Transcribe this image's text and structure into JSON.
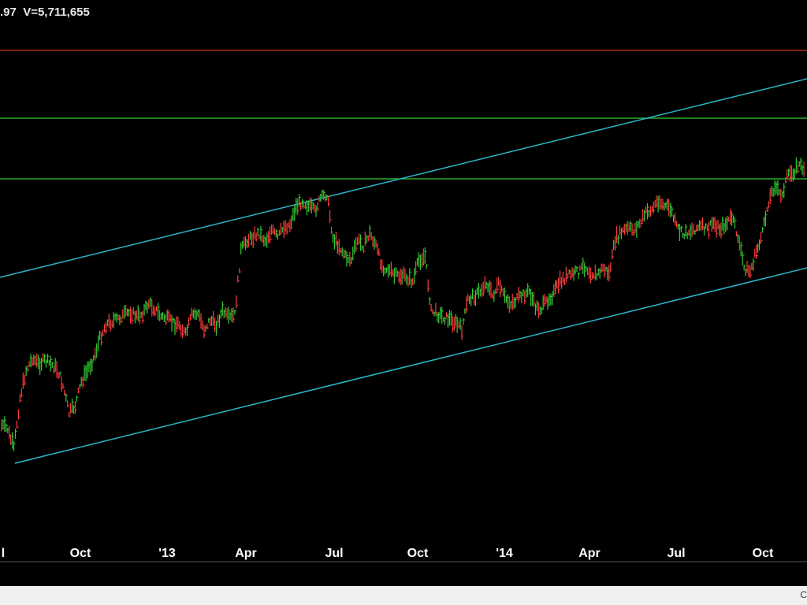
{
  "header": {
    "price_fragment": ".97",
    "volume_text": "V=5,711,655"
  },
  "status_bar": {
    "text": "C"
  },
  "colors": {
    "background": "#000000",
    "up_bar": "#33cc33",
    "down_bar": "#ff3b3b",
    "channel_line": "#2ab8cc",
    "horizontal_green": "#33cc33",
    "horizontal_red": "#cc3a1a"
  },
  "chart_data": {
    "type": "line",
    "style": "ohlc-bars",
    "x_tick_labels": [
      "l",
      "Oct",
      "'13",
      "Apr",
      "Jul",
      "Oct",
      "'14",
      "Apr",
      "Jul",
      "Oct"
    ],
    "grid": false,
    "legend": "none",
    "series": [
      {
        "values": [
          540,
          545,
          570,
          505,
          470,
          455,
          462,
          458,
          462,
          468,
          490,
          525,
          515,
          485,
          470,
          455,
          430,
          412,
          408,
          405,
          400,
          396,
          402,
          398,
          385,
          392,
          402,
          405,
          410,
          412,
          425,
          400,
          398,
          418,
          406,
          412,
          395,
          405,
          400,
          318,
          305,
          300,
          296,
          306,
          292,
          302,
          288,
          285,
          262,
          255,
          262,
          268,
          252,
          246,
          302,
          312,
          326,
          330,
          305,
          312,
          296,
          312,
          338,
          342,
          350,
          350,
          352,
          358,
          330,
          325,
          395,
          398,
          402,
          405,
          410,
          418,
          380,
          376,
          370,
          358,
          376,
          362,
          378,
          385,
          380,
          375,
          370,
          390,
          392,
          380,
          372,
          358,
          352,
          348,
          345,
          338,
          345,
          350,
          340,
          348,
          305,
          295,
          290,
          292,
          284,
          270,
          266,
          254,
          262,
          265,
          288,
          298,
          294,
          290,
          288,
          292,
          283,
          290,
          285,
          276,
          300,
          340,
          345,
          320,
          296,
          255,
          235,
          250,
          225,
          218,
          210,
          215
        ]
      }
    ],
    "trendlines": [
      {
        "name": "channel-upper",
        "type": "channel",
        "from_index": 0,
        "to_index": 131,
        "from_value": 352,
        "to_value": 100
      },
      {
        "name": "channel-lower",
        "type": "channel",
        "from_index": 1,
        "to_index": 131,
        "from_value": 588,
        "to_value": 340
      }
    ],
    "horizontal_levels": [
      {
        "name": "level-red",
        "value": 64
      },
      {
        "name": "level-green-upper",
        "value": 150
      },
      {
        "name": "level-green-lower",
        "value": 227
      }
    ]
  }
}
